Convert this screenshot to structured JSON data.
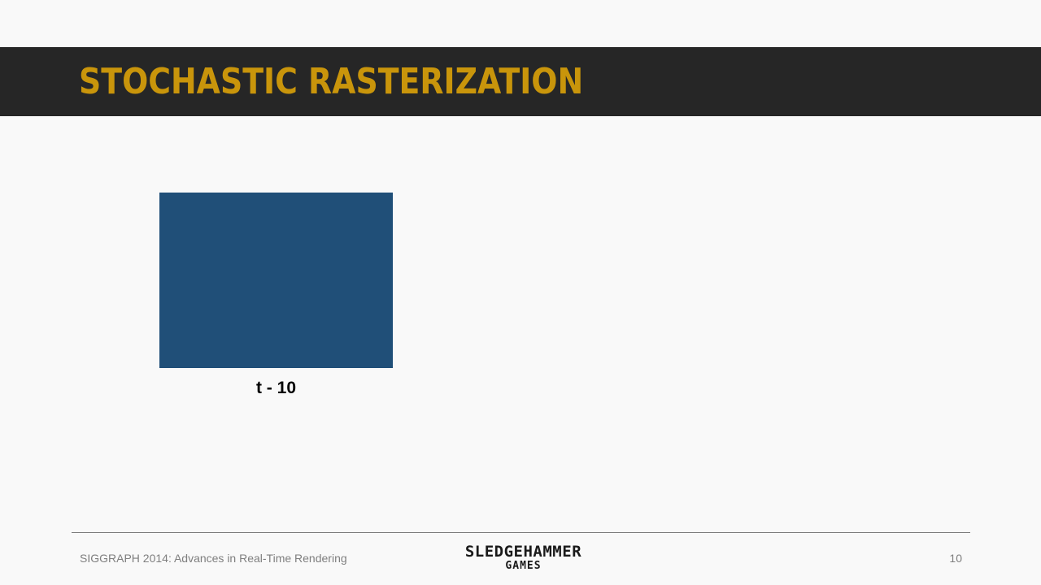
{
  "slide": {
    "title": "STOCHASTIC RASTERIZATION",
    "caption": "t - 10",
    "square_color": "#204f78",
    "title_color": "#c9950b",
    "title_bar_color": "#262626"
  },
  "footer": {
    "conference": "SIGGRAPH 2014: Advances in Real-Time Rendering",
    "logo_line1": "SLEDGEHAMMER",
    "logo_line2": "GAMES",
    "page_number": "10"
  }
}
